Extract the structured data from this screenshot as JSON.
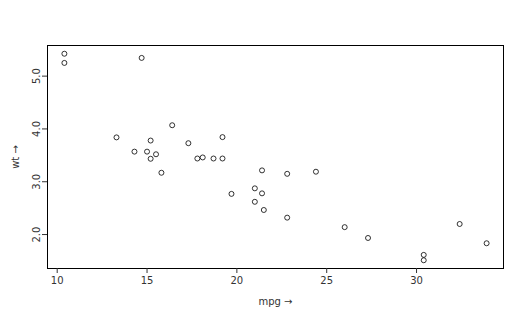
{
  "chart_data": {
    "type": "scatter",
    "xlabel": "mpg",
    "ylabel": "wt",
    "x": [
      21.0,
      21.0,
      22.8,
      21.4,
      18.7,
      18.1,
      14.3,
      24.4,
      22.8,
      19.2,
      17.8,
      16.4,
      17.3,
      15.2,
      10.4,
      10.4,
      14.7,
      32.4,
      30.4,
      33.9,
      21.5,
      15.5,
      15.2,
      13.3,
      19.2,
      27.3,
      26.0,
      30.4,
      15.8,
      19.7,
      15.0,
      21.4
    ],
    "values": [
      2.62,
      2.875,
      2.32,
      3.215,
      3.44,
      3.46,
      3.57,
      3.19,
      3.15,
      3.44,
      3.44,
      4.07,
      3.73,
      3.78,
      5.25,
      5.424,
      5.345,
      2.2,
      1.615,
      1.835,
      2.465,
      3.52,
      3.435,
      3.84,
      3.845,
      1.935,
      2.14,
      1.513,
      3.17,
      2.77,
      3.57,
      2.78
    ],
    "xlim": [
      9.46,
      34.84
    ],
    "ylim": [
      1.357,
      5.58
    ],
    "xticks": [
      10,
      15,
      20,
      25,
      30
    ],
    "yticks": [
      2,
      3,
      4,
      5
    ],
    "color": "#000000",
    "marker": "circle",
    "grid": false
  }
}
